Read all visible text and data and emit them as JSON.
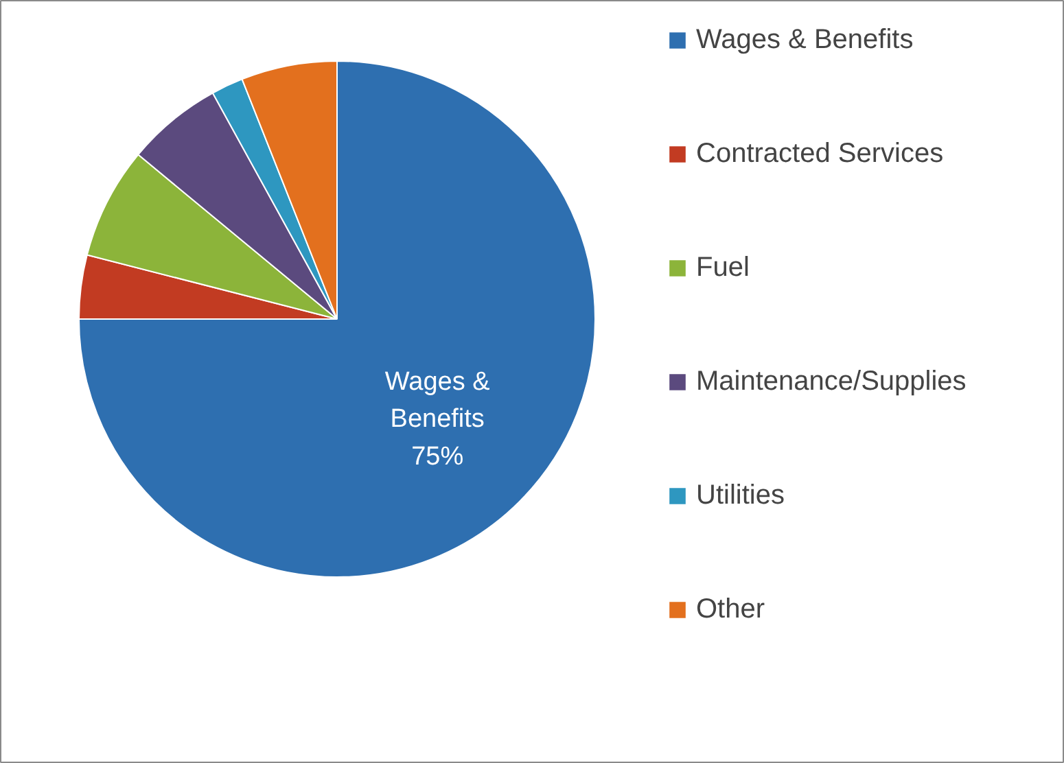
{
  "chart_data": {
    "type": "pie",
    "categories": [
      "Wages & Benefits",
      "Contracted Services",
      "Fuel",
      "Maintenance/Supplies",
      "Utilities",
      "Other"
    ],
    "values": [
      75,
      4,
      7,
      6,
      2,
      6
    ],
    "colors": [
      "#2e6fb0",
      "#c23b22",
      "#8cb43a",
      "#5b4a7e",
      "#2e97c0",
      "#e3701e"
    ],
    "value_labels": [
      "Wages &\nBenefits\n75%",
      null,
      null,
      null,
      null,
      null
    ],
    "legend": "right"
  }
}
